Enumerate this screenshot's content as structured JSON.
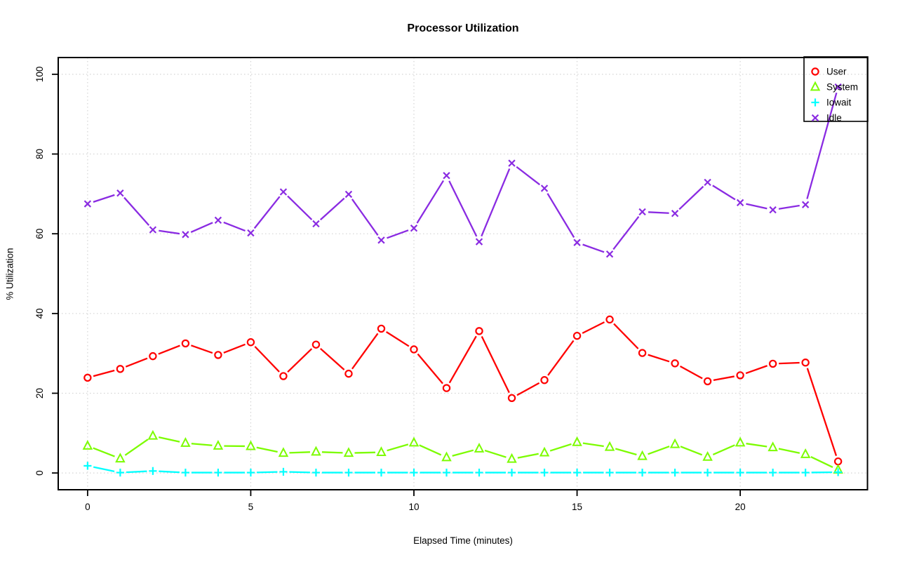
{
  "chart_data": {
    "type": "line",
    "title": "Processor Utilization",
    "xlabel": "Elapsed Time (minutes)",
    "ylabel": "% Utilization",
    "x": [
      0,
      1,
      2,
      3,
      4,
      5,
      6,
      7,
      8,
      9,
      10,
      11,
      12,
      13,
      14,
      15,
      16,
      17,
      18,
      19,
      20,
      21,
      22,
      23
    ],
    "xticks": [
      0,
      5,
      10,
      15,
      20
    ],
    "yticks": [
      0,
      20,
      40,
      60,
      80,
      100
    ],
    "xlim": [
      -0.9,
      23.9
    ],
    "ylim": [
      -4.2,
      104.2
    ],
    "grid": true,
    "grid_style": "dotted",
    "grid_color": "#d4d4d4",
    "axis_color": "#000000",
    "background_color": "#ffffff",
    "legend_position": "topright",
    "legend_transparent": true,
    "line_style": "segments-with-point-gaps",
    "series": [
      {
        "name": "User",
        "marker": "circle",
        "color": "#ff0000",
        "values": [
          23.9,
          26.1,
          29.3,
          32.5,
          29.6,
          32.8,
          24.3,
          32.2,
          24.9,
          36.2,
          31.0,
          21.3,
          35.6,
          18.8,
          23.3,
          34.4,
          38.5,
          30.1,
          27.5,
          23.0,
          24.5,
          27.4,
          27.7,
          2.9
        ]
      },
      {
        "name": "System",
        "marker": "triangle",
        "color": "#7cfc00",
        "values": [
          6.8,
          3.6,
          9.3,
          7.5,
          6.8,
          6.7,
          5.0,
          5.3,
          5.0,
          5.2,
          7.6,
          3.9,
          6.1,
          3.5,
          5.1,
          7.7,
          6.5,
          4.2,
          7.2,
          4.0,
          7.6,
          6.4,
          4.7,
          0.8
        ]
      },
      {
        "name": "Iowait",
        "marker": "plus",
        "color": "#00ffff",
        "values": [
          1.8,
          0.1,
          0.5,
          0.1,
          0.1,
          0.1,
          0.3,
          0.1,
          0.1,
          0.1,
          0.1,
          0.1,
          0.1,
          0.1,
          0.1,
          0.1,
          0.1,
          0.1,
          0.1,
          0.1,
          0.1,
          0.1,
          0.1,
          0.2
        ]
      },
      {
        "name": "Idle",
        "marker": "x",
        "color": "#8a2be2",
        "values": [
          67.5,
          70.2,
          61.0,
          59.8,
          63.4,
          60.2,
          70.5,
          62.5,
          69.9,
          58.4,
          61.4,
          74.6,
          58.0,
          77.7,
          71.4,
          57.8,
          54.9,
          65.5,
          65.1,
          72.9,
          67.8,
          66.0,
          67.3,
          96.8
        ]
      }
    ]
  }
}
